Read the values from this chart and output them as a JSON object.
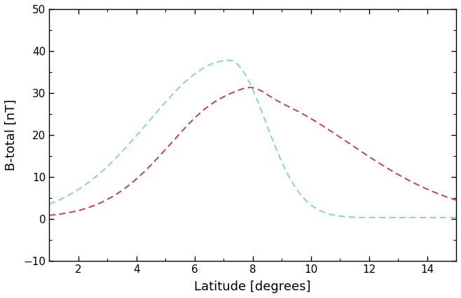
{
  "title": "",
  "xlabel": "Latitude [degrees]",
  "ylabel": "B-total [nT]",
  "xlim": [
    1,
    15
  ],
  "ylim": [
    -10,
    50
  ],
  "xticks": [
    2,
    4,
    6,
    8,
    10,
    12,
    14
  ],
  "yticks": [
    -10,
    0,
    10,
    20,
    30,
    40,
    50
  ],
  "cyan_color": "#7DCDE8",
  "red_color": "#CC3333",
  "figsize": [
    6.58,
    4.26
  ],
  "dpi": 100
}
